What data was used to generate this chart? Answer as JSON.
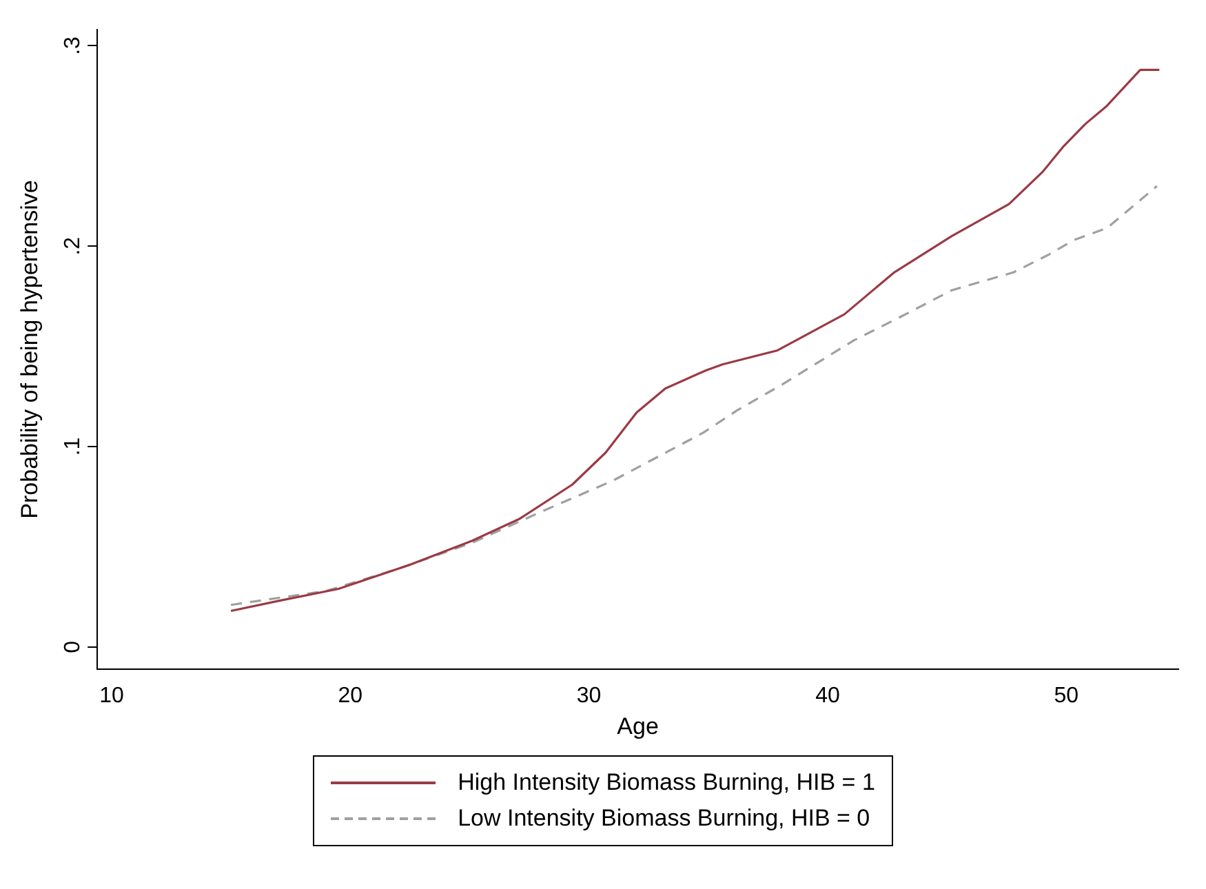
{
  "chart_data": {
    "type": "line",
    "xlabel": "Age",
    "ylabel": "Probability of being hypertensive",
    "xlim": [
      9.4,
      54.7
    ],
    "xticks": [
      10,
      20,
      30,
      40,
      50
    ],
    "ylim": [
      -0.011,
      0.308
    ],
    "yticks": [
      0,
      {
        "value": 0.1,
        "label": ".1"
      },
      {
        "value": 0.2,
        "label": ".2"
      },
      {
        "value": 0.3,
        "label": ".3"
      }
    ],
    "grid": false,
    "legend": "bottom",
    "marker": "none",
    "series": [
      {
        "name": "High Intensity Biomass Burning, HIB = 1",
        "color": "#9b3a44",
        "line_style": "solid",
        "x": [
          15,
          17,
          19.5,
          22.5,
          25.1,
          27.1,
          29.3,
          30.7,
          32,
          33.2,
          34.9,
          35.6,
          37.9,
          40.7,
          42.8,
          45.2,
          47.6,
          49,
          49.9,
          50.8,
          51.7,
          53.1,
          53.9
        ],
        "values": [
          0.018,
          0.023,
          0.029,
          0.041,
          0.053,
          0.064,
          0.081,
          0.097,
          0.117,
          0.129,
          0.138,
          0.141,
          0.148,
          0.166,
          0.187,
          0.205,
          0.221,
          0.237,
          0.25,
          0.261,
          0.27,
          0.288,
          0.288
        ]
      },
      {
        "name": "Low Intensity Biomass Burning, HIB = 0",
        "color": "#a0a0a0",
        "line_style": "dashed",
        "x": [
          15,
          19,
          22,
          25.1,
          28.1,
          31,
          34.8,
          36.2,
          38.1,
          41.1,
          43.1,
          45.2,
          47.8,
          49.3,
          50.3,
          51.7,
          52.4,
          53.8
        ],
        "values": [
          0.021,
          0.028,
          0.039,
          0.052,
          0.068,
          0.083,
          0.107,
          0.118,
          0.131,
          0.153,
          0.165,
          0.178,
          0.187,
          0.196,
          0.203,
          0.209,
          0.216,
          0.23
        ]
      }
    ]
  }
}
